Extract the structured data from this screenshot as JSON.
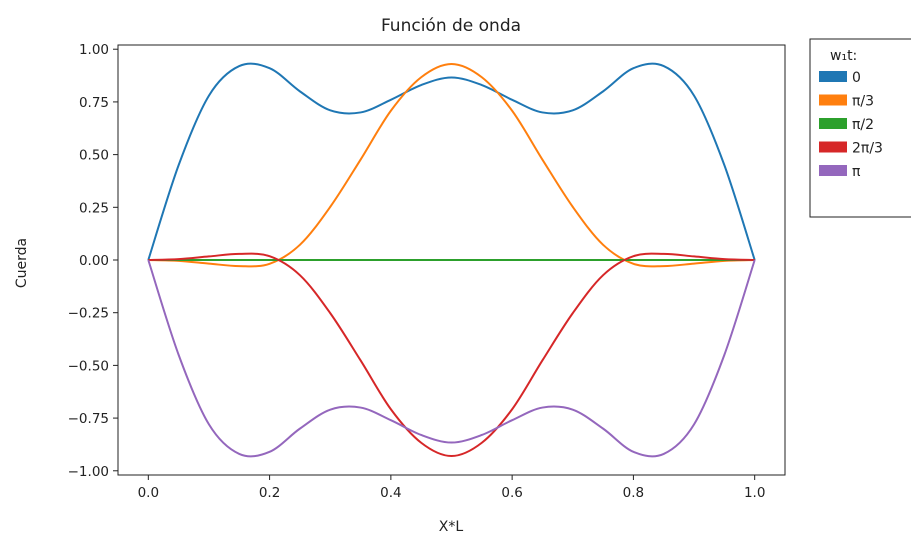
{
  "chart_data": {
    "type": "line",
    "title": "Función de onda",
    "xlabel": "X*L",
    "ylabel": "Cuerda",
    "xlim": [
      -0.05,
      1.05
    ],
    "ylim": [
      -1.02,
      1.02
    ],
    "xticks": [
      0.0,
      0.2,
      0.4,
      0.6,
      0.8,
      1.0
    ],
    "xtick_labels": [
      "0.0",
      "0.2",
      "0.4",
      "0.6",
      "0.8",
      "1.0"
    ],
    "yticks": [
      1.0,
      0.75,
      0.5,
      0.25,
      0.0,
      -0.25,
      -0.5,
      -0.75,
      -1.0
    ],
    "ytick_labels": [
      "1.00",
      "0.75",
      "0.50",
      "0.25",
      "0.00",
      "−0.25",
      "−0.50",
      "−0.75",
      "−1.00"
    ],
    "grid": false,
    "legend": {
      "title": "w₁t:",
      "placement": "outside-right"
    },
    "x": [
      0.0,
      0.05,
      0.1,
      0.15,
      0.2,
      0.25,
      0.3,
      0.35,
      0.4,
      0.45,
      0.5,
      0.55,
      0.6,
      0.65,
      0.7,
      0.75,
      0.8,
      0.85,
      0.9,
      0.95,
      1.0
    ],
    "series": [
      {
        "name": "0",
        "color": "#1f77b4",
        "values": [
          0.0,
          0.45,
          0.78,
          0.92,
          0.91,
          0.8,
          0.71,
          0.7,
          0.76,
          0.83,
          0.866,
          0.83,
          0.76,
          0.7,
          0.71,
          0.8,
          0.91,
          0.92,
          0.78,
          0.45,
          0.0
        ]
      },
      {
        "name": "π/3",
        "color": "#ff7f0e",
        "values": [
          0.0,
          -0.004,
          -0.017,
          -0.029,
          -0.018,
          0.072,
          0.252,
          0.476,
          0.708,
          0.867,
          0.93,
          0.867,
          0.708,
          0.476,
          0.252,
          0.072,
          -0.018,
          -0.029,
          -0.017,
          -0.004,
          0.0
        ]
      },
      {
        "name": "π/2",
        "color": "#2ca02c",
        "values": [
          0.0,
          0.0,
          0.0,
          0.0,
          0.0,
          0.0,
          0.0,
          0.0,
          0.0,
          0.0,
          0.0,
          0.0,
          0.0,
          0.0,
          0.0,
          0.0,
          0.0,
          0.0,
          0.0,
          0.0,
          0.0
        ]
      },
      {
        "name": "2π/3",
        "color": "#d62728",
        "values": [
          0.0,
          0.004,
          0.017,
          0.029,
          0.018,
          -0.072,
          -0.252,
          -0.476,
          -0.708,
          -0.867,
          -0.93,
          -0.867,
          -0.708,
          -0.476,
          -0.252,
          -0.072,
          0.018,
          0.029,
          0.017,
          0.004,
          0.0
        ]
      },
      {
        "name": "π",
        "color": "#9467bd",
        "values": [
          0.0,
          -0.45,
          -0.78,
          -0.92,
          -0.91,
          -0.8,
          -0.71,
          -0.7,
          -0.76,
          -0.83,
          -0.866,
          -0.83,
          -0.76,
          -0.7,
          -0.71,
          -0.8,
          -0.91,
          -0.92,
          -0.78,
          -0.45,
          0.0
        ]
      }
    ]
  }
}
